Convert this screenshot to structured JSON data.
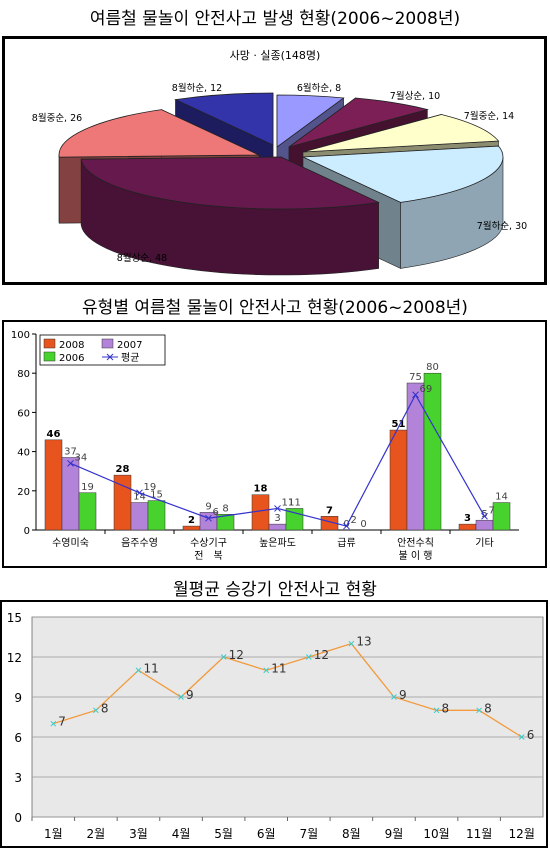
{
  "titles": {
    "pie": "여름철 물놀이 안전사고 발생 현황(2006~2008년)",
    "bar": "유형별 여름철 물놀이 안전사고 현황(2006~2008년)",
    "line": "월평균 승강기 안전사고 현황"
  },
  "chart_data": [
    {
      "type": "pie",
      "title": "사망 · 실종(148명)",
      "slices": [
        {
          "label": "6월하순",
          "value": 8,
          "color": "#9999ff"
        },
        {
          "label": "7월상순",
          "value": 10,
          "color": "#7b1f56"
        },
        {
          "label": "7월중순",
          "value": 14,
          "color": "#ffffcc"
        },
        {
          "label": "7월하순",
          "value": 30,
          "color": "#ccecff"
        },
        {
          "label": "8월상순",
          "value": 48,
          "color": "#66194d"
        },
        {
          "label": "8월중순",
          "value": 26,
          "color": "#ee7777"
        },
        {
          "label": "8월하순",
          "value": 12,
          "color": "#3333aa"
        }
      ],
      "label_texts": [
        "6월하순, 8",
        "7월상순, 10",
        "7월중순, 14",
        "7월하순, 30",
        "8월상순, 48",
        "8월중순, 26",
        "8월하순, 12"
      ]
    },
    {
      "type": "bar",
      "categories": [
        "수영미숙",
        "음주수영",
        "수상기구\n전　복",
        "높은파도",
        "급류",
        "안전수칙\n불 이 행",
        "기타"
      ],
      "series": [
        {
          "name": "2008",
          "values": [
            46,
            28,
            2,
            18,
            7,
            51,
            3
          ],
          "color": "#e8541e"
        },
        {
          "name": "2007",
          "values": [
            37,
            14,
            9,
            3,
            0,
            75,
            5
          ],
          "color": "#b383d9"
        },
        {
          "name": "2006",
          "values": [
            19,
            15,
            8,
            11,
            0,
            80,
            14
          ],
          "color": "#47d22e"
        }
      ],
      "line_series": {
        "name": "평균",
        "values": [
          34,
          19,
          6,
          11,
          2,
          69,
          7
        ],
        "color": "#3333cc"
      },
      "ylim": [
        0,
        100
      ],
      "yticks": [
        0,
        20,
        40,
        60,
        80,
        100
      ],
      "legend": "top-left",
      "grid": false
    },
    {
      "type": "line",
      "categories": [
        "1월",
        "2월",
        "3월",
        "4월",
        "5월",
        "6월",
        "7월",
        "8월",
        "9월",
        "10월",
        "11월",
        "12월"
      ],
      "series": [
        {
          "values": [
            7,
            8,
            11,
            9,
            12,
            11,
            12,
            13,
            9,
            8,
            8,
            6
          ],
          "color": "#f29a3d"
        }
      ],
      "ylim": [
        0,
        15
      ],
      "yticks": [
        0,
        3,
        6,
        9,
        12,
        15
      ],
      "grid": true,
      "background": "#e8e8e8"
    }
  ]
}
